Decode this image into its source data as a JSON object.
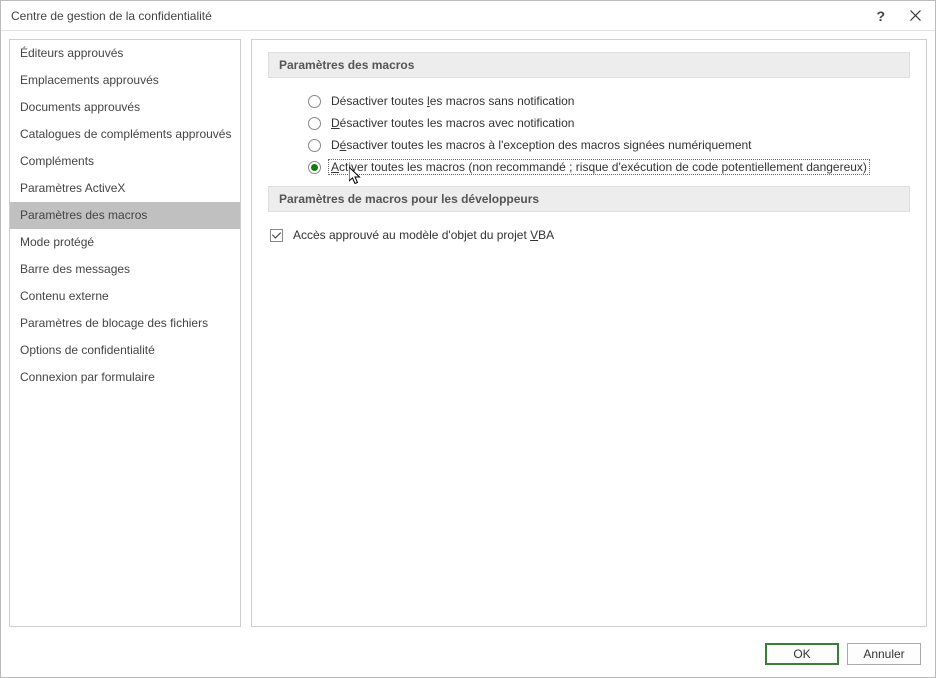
{
  "titlebar": {
    "title": "Centre de gestion de la confidentialité"
  },
  "sidebar": {
    "items": [
      {
        "label": "Éditeurs approuvés",
        "selected": false
      },
      {
        "label": "Emplacements approuvés",
        "selected": false
      },
      {
        "label": "Documents approuvés",
        "selected": false
      },
      {
        "label": "Catalogues de compléments approuvés",
        "selected": false
      },
      {
        "label": "Compléments",
        "selected": false
      },
      {
        "label": "Paramètres ActiveX",
        "selected": false
      },
      {
        "label": "Paramètres des macros",
        "selected": true
      },
      {
        "label": "Mode protégé",
        "selected": false
      },
      {
        "label": "Barre des messages",
        "selected": false
      },
      {
        "label": "Contenu externe",
        "selected": false
      },
      {
        "label": "Paramètres de blocage des fichiers",
        "selected": false
      },
      {
        "label": "Options de confidentialité",
        "selected": false
      },
      {
        "label": "Connexion par formulaire",
        "selected": false
      }
    ]
  },
  "main": {
    "section1": {
      "title": "Paramètres des macros",
      "radios": [
        {
          "label_before": "Désactiver toutes ",
          "underline": "l",
          "label_after": "es macros sans notification",
          "checked": false,
          "focused": false
        },
        {
          "label_before": "",
          "underline": "D",
          "label_after": "ésactiver toutes les macros avec notification",
          "checked": false,
          "focused": false
        },
        {
          "label_before": "D",
          "underline": "é",
          "label_after": "sactiver toutes les macros à l'exception des macros signées numériquement",
          "checked": false,
          "focused": false
        },
        {
          "label_before": "",
          "underline": "A",
          "label_after": "ctiver toutes les macros (non recommandé ; risque d'exécution de code potentiellement dangereux)",
          "checked": true,
          "focused": true
        }
      ]
    },
    "section2": {
      "title": "Paramètres de macros pour les développeurs",
      "checkbox": {
        "label_before": "Accès approuvé au modèle d'objet du projet ",
        "underline": "V",
        "label_after": "BA",
        "checked": true
      }
    }
  },
  "buttons": {
    "ok": "OK",
    "cancel": "Annuler"
  }
}
